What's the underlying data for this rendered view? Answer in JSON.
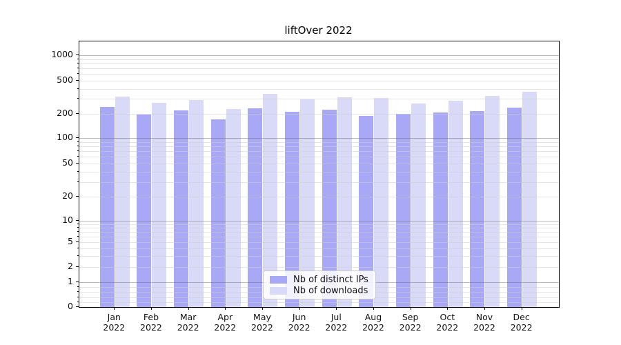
{
  "title": "liftOver 2022",
  "chart_data": {
    "type": "bar",
    "title": "liftOver 2022",
    "categories": [
      "Jan 2022",
      "Feb 2022",
      "Mar 2022",
      "Apr 2022",
      "May 2022",
      "Jun 2022",
      "Jul 2022",
      "Aug 2022",
      "Sep 2022",
      "Oct 2022",
      "Nov 2022",
      "Dec 2022"
    ],
    "series": [
      {
        "name": "Nb of distinct IPs",
        "color": "#a8a8f6",
        "values": [
          242,
          196,
          220,
          171,
          230,
          211,
          221,
          188,
          197,
          205,
          213,
          237
        ]
      },
      {
        "name": "Nb of downloads",
        "color": "#d9d9f8",
        "values": [
          324,
          271,
          293,
          225,
          348,
          297,
          312,
          308,
          265,
          287,
          325,
          366
        ]
      }
    ],
    "xlabel": "",
    "ylabel": "",
    "yscale": "symlog",
    "ylim": [
      0,
      1450
    ],
    "yticks": [
      0,
      1,
      2,
      5,
      10,
      20,
      50,
      100,
      200,
      500,
      1000
    ],
    "grid": {
      "on": true,
      "major_values": [
        1,
        10,
        100,
        1000
      ],
      "minor_values": [
        0.2,
        0.4,
        0.6,
        0.8,
        3,
        4,
        6,
        7,
        8,
        9,
        30,
        40,
        60,
        70,
        80,
        90,
        300,
        400,
        600,
        700,
        800,
        900
      ]
    },
    "legend_position": "lower center"
  },
  "legend": {
    "items": [
      {
        "label": "Nb of distinct IPs",
        "color": "#a8a8f6"
      },
      {
        "label": "Nb of downloads",
        "color": "#d9d9f8"
      }
    ]
  },
  "colors": {
    "bar_distinct_ips": "#a8a8f6",
    "bar_downloads": "#d9d9f8",
    "grid_major": "#b0b0b0",
    "grid_minor": "#dddddd",
    "axis": "#000000",
    "background": "#ffffff"
  }
}
